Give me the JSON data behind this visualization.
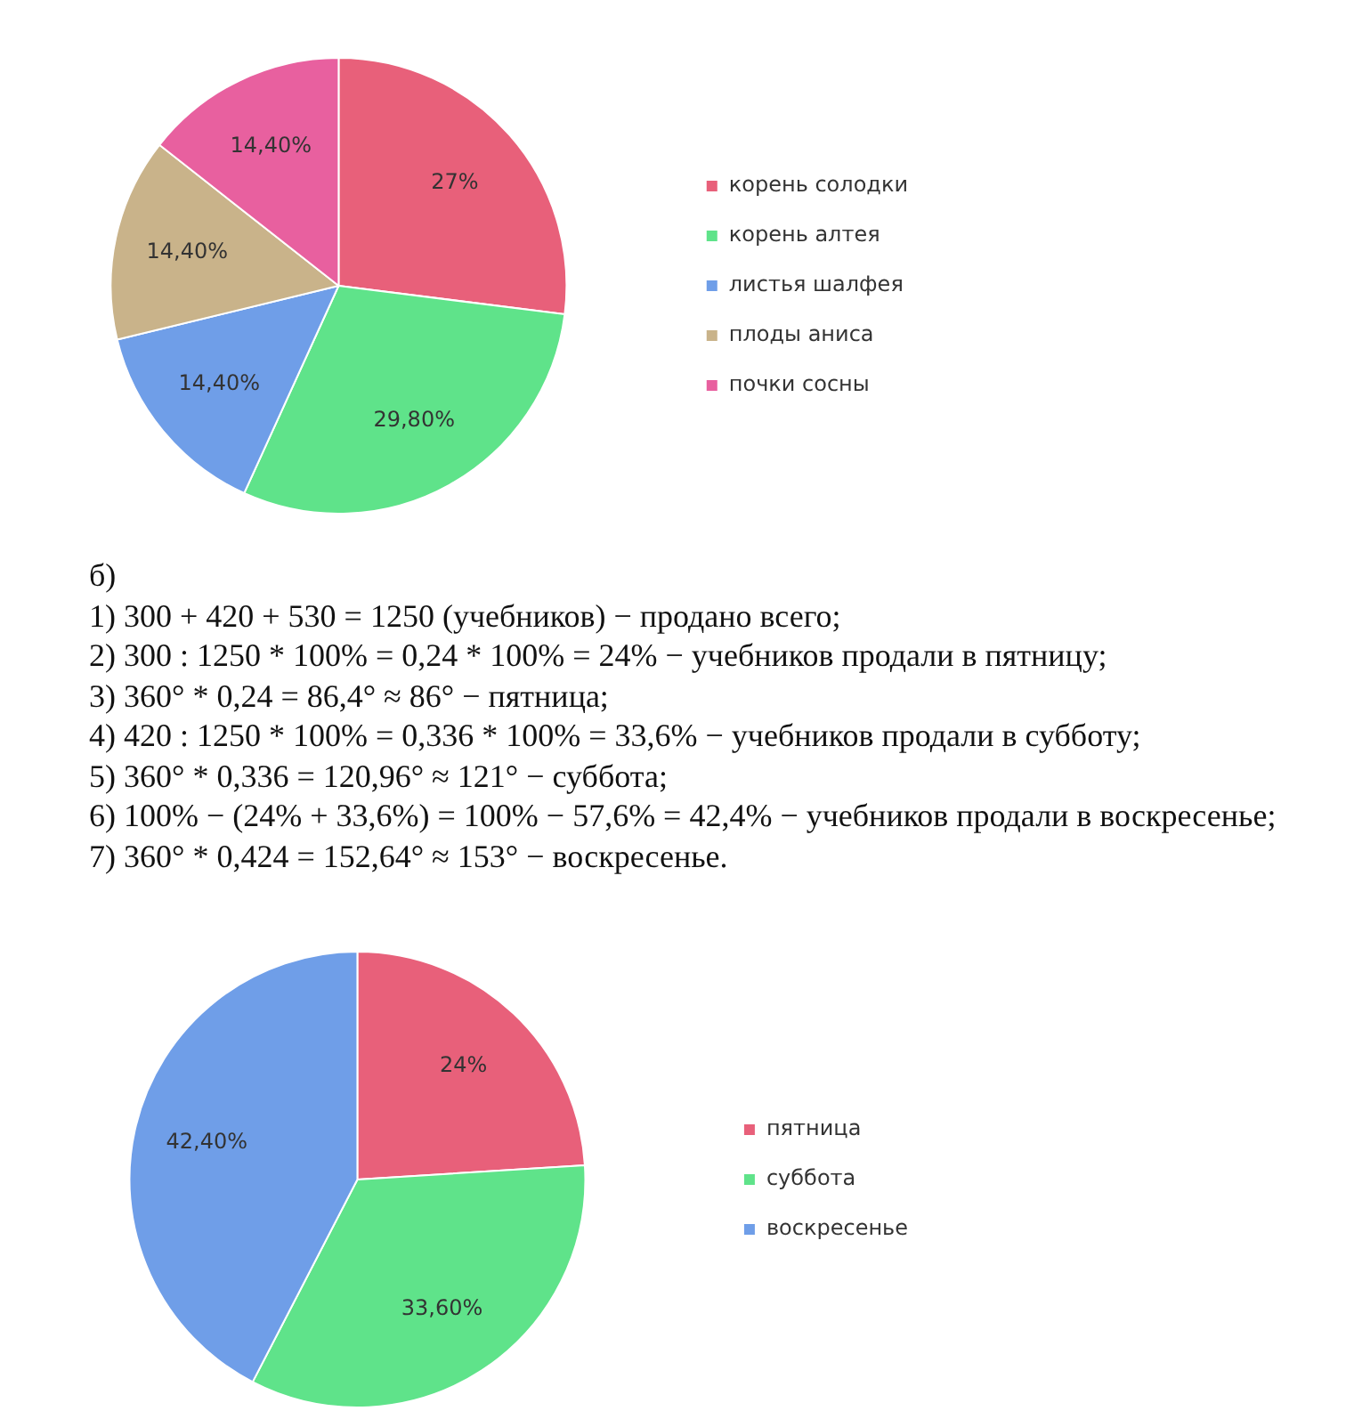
{
  "chart_data": [
    {
      "type": "pie",
      "categories": [
        "корень солодки",
        "корень алтея",
        "листья шалфея",
        "плоды аниса",
        "почки сосны"
      ],
      "values": [
        27,
        29.8,
        14.4,
        14.4,
        14.4
      ],
      "colors": [
        "#e8607a",
        "#5fe38a",
        "#6f9ee8",
        "#c9b38a",
        "#e8609f"
      ],
      "value_labels": [
        "27%",
        "29,80%",
        "14,40%",
        "14,40%",
        "14,40%"
      ],
      "legend": "right"
    },
    {
      "type": "other",
      "annotations": [
        "б)",
        "1) 300 + 420 + 530 = 1250 (учебников) − продано всего;",
        "2) 300 : 1250 * 100% = 0,24 * 100% = 24% − учебников продали в пятницу;",
        "3) 360° * 0,24 = 86,4° ≈ 86° − пятница;",
        "4) 420 : 1250 * 100% = 0,336 * 100% = 33,6% − учебников продали в субботу;",
        "5) 360° * 0,336 = 120,96° ≈ 121° − суббота;",
        "6) 100% − (24% + 33,6%) = 100% − 57,6% = 42,4% − учебников продали в воскресенье;",
        "7) 360° * 0,424 = 152,64° ≈ 153° − воскресенье."
      ]
    },
    {
      "type": "pie",
      "categories": [
        "пятница",
        "суббота",
        "воскресенье"
      ],
      "values": [
        24,
        33.6,
        42.4
      ],
      "colors": [
        "#e8607a",
        "#5fe38a",
        "#6f9ee8"
      ],
      "value_labels": [
        "24%",
        "33,60%",
        "42,40%"
      ],
      "legend": "right"
    }
  ]
}
